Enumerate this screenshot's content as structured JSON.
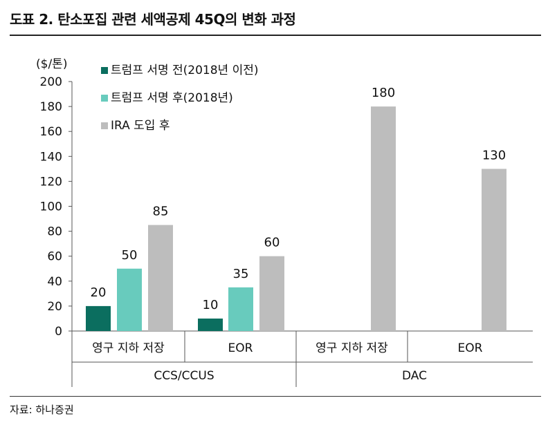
{
  "header": {
    "title": "도표 2. 탄소포집 관련 세액공제 45Q의 변화 과정"
  },
  "footer": {
    "source": "자료: 하나증권"
  },
  "colors": {
    "series": [
      "#0b6e5f",
      "#68cbbd",
      "#bdbdbd"
    ],
    "axis": "#555555",
    "text": "#111111"
  },
  "chart_data": {
    "type": "bar",
    "title": "",
    "ylabel": "($/톤)",
    "ylim": [
      0,
      200
    ],
    "yticks": [
      "0",
      "20",
      "40",
      "60",
      "80",
      "100",
      "120",
      "140",
      "160",
      "180",
      "200"
    ],
    "categories": [
      "영구 지하 저장",
      "EOR",
      "영구 지하 저장",
      "EOR"
    ],
    "groups": [
      {
        "label": "CCS/CCUS",
        "categories": [
          0,
          1
        ]
      },
      {
        "label": "DAC",
        "categories": [
          2,
          3
        ]
      }
    ],
    "series": [
      {
        "name": "트럼프 서명 전(2018년 이전)",
        "values": [
          20,
          10,
          null,
          null
        ]
      },
      {
        "name": "트럼프 서명 후(2018년)",
        "values": [
          50,
          35,
          null,
          null
        ]
      },
      {
        "name": "IRA 도입 후",
        "values": [
          85,
          60,
          180,
          130
        ]
      }
    ],
    "data_labels": [
      [
        "20",
        "10",
        "",
        ""
      ],
      [
        "50",
        "35",
        "",
        ""
      ],
      [
        "85",
        "60",
        "180",
        "130"
      ]
    ],
    "grid": false,
    "legend_position": "top-left"
  }
}
